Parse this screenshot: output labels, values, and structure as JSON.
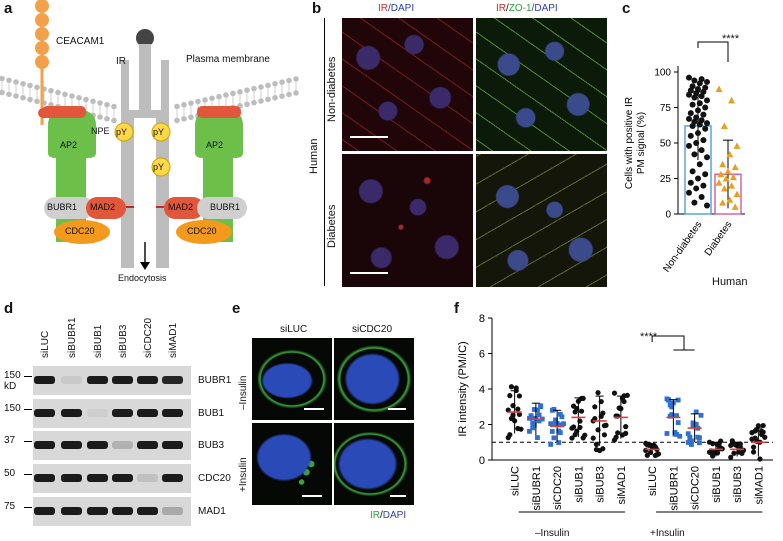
{
  "panel_labels": {
    "a": "a",
    "b": "b",
    "c": "c",
    "d": "d",
    "e": "e",
    "f": "f"
  },
  "panel_a": {
    "ceacam1": "CEACAM1",
    "ir": "IR",
    "plasma_membrane": "Plasma membrane",
    "ap2_left": "AP2",
    "ap2_right": "AP2",
    "npe": "NPE",
    "py1": "pY",
    "py2": "pY",
    "py3": "pY",
    "bubr1_left": "BUBR1",
    "mad2_left": "MAD2",
    "mad2_right": "MAD2",
    "bubr1_right": "BUBR1",
    "cdc20_left": "CDC20",
    "cdc20_right": "CDC20",
    "endocytosis": "Endocytosis"
  },
  "panel_b": {
    "col1_title_ir": "IR",
    "col1_title_rest": "/DAPI",
    "col2_title_ir": "IR",
    "col2_sep": "/",
    "col2_title_zo": "ZO-1",
    "col2_title_rest": "/DAPI",
    "row1": "Non-diabetes",
    "row2": "Diabetes",
    "side": "Human"
  },
  "panel_c": {
    "significance": "****",
    "human": "Human",
    "chart_data": {
      "type": "bar",
      "ylabel": "Cells with positive IR PM signal (%)",
      "categories": [
        "Non-diabetes",
        "Diabetes"
      ],
      "values": [
        62,
        28
      ],
      "sd": [
        24,
        24
      ],
      "ylim": [
        0,
        100
      ],
      "yticks": [
        "0",
        "25",
        "50",
        "75",
        "100"
      ],
      "series": [
        {
          "name": "Non-diabetes",
          "points": [
            96,
            95,
            94,
            93,
            92,
            90,
            89,
            88,
            87,
            86,
            85,
            84,
            83,
            82,
            80,
            78,
            77,
            75,
            73,
            71,
            70,
            68,
            67,
            66,
            65,
            64,
            63,
            62,
            60,
            57,
            55,
            52,
            50,
            48,
            45,
            42,
            40,
            35,
            30,
            28,
            25,
            22,
            20,
            18,
            15,
            12,
            8,
            6
          ]
        },
        {
          "name": "Diabetes",
          "points": [
            88,
            80,
            62,
            48,
            42,
            35,
            33,
            30,
            28,
            26,
            25,
            22,
            20,
            18,
            14,
            10,
            8,
            5
          ]
        }
      ],
      "colors": {
        "bar1": "#4aa0d8",
        "bar2": "#d05a9a",
        "dots1": "#111111",
        "dots2": "#e8a020"
      }
    }
  },
  "panel_d": {
    "lanes": [
      "siLUC",
      "siBUBR1",
      "siBUB1",
      "siBUB3",
      "siCDC20",
      "siMAD1"
    ],
    "rows": [
      {
        "mw": "150",
        "unit": "kD",
        "label": "BUBR1"
      },
      {
        "mw": "150",
        "unit": "",
        "label": "BUB1"
      },
      {
        "mw": "37",
        "unit": "",
        "label": "BUB3"
      },
      {
        "mw": "50",
        "unit": "",
        "label": "CDC20"
      },
      {
        "mw": "75",
        "unit": "",
        "label": "MAD1"
      }
    ]
  },
  "panel_e": {
    "col1": "siLUC",
    "col2": "siCDC20",
    "row1": "–Insulin",
    "row2": "+Insulin",
    "legend_ir": "IR",
    "legend_sep": "/",
    "legend_dapi": "DAPI"
  },
  "panel_f": {
    "significance": "****",
    "group1": "–Insulin",
    "group2": "+Insulin",
    "chart_data": {
      "type": "scatter",
      "ylabel": "IR intensity (PM/IC)",
      "ylim": [
        0,
        8
      ],
      "yticks": [
        "0",
        "2",
        "4",
        "6",
        "8"
      ],
      "categories": [
        "siLUC",
        "siBUBR1",
        "siCDC20",
        "siBUB1",
        "siBUB3",
        "siMAD1",
        "siLUC",
        "siBUBR1",
        "siCDC20",
        "siBUB1",
        "siBUB3",
        "siMAD1"
      ],
      "means": [
        2.7,
        2.3,
        1.9,
        2.4,
        2.2,
        2.4,
        0.6,
        2.4,
        1.8,
        0.6,
        0.6,
        1.0
      ],
      "sd": [
        1.2,
        0.9,
        0.9,
        1.1,
        1.4,
        1.2,
        0.3,
        1.0,
        0.8,
        0.4,
        0.4,
        0.8
      ],
      "reference_line": 1.0,
      "colors": [
        "#111111",
        "#2e6fcf",
        "#2e6fcf",
        "#111111",
        "#111111",
        "#111111",
        "#111111",
        "#2e6fcf",
        "#2e6fcf",
        "#111111",
        "#111111",
        "#111111"
      ]
    }
  }
}
